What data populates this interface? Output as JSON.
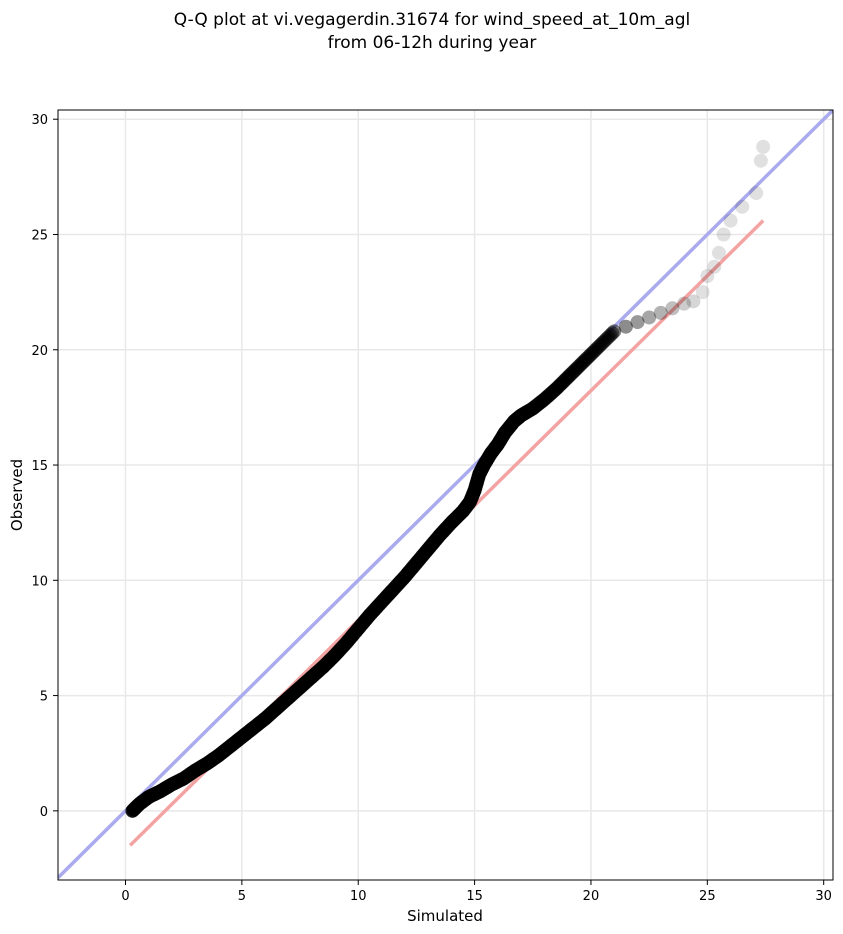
{
  "chart_data": {
    "type": "scatter",
    "title": "Q-Q plot at vi.vegagerdin.31674 for wind_speed_at_10m_agl",
    "subtitle": "from 06-12h during year",
    "xlabel": "Simulated",
    "ylabel": "Observed",
    "xlim": [
      -2.9,
      30.4
    ],
    "ylim": [
      -3.0,
      30.4
    ],
    "xticks": [
      0,
      5,
      10,
      15,
      20,
      25,
      30
    ],
    "yticks": [
      0,
      5,
      10,
      15,
      20,
      25,
      30
    ],
    "grid": true,
    "colors": {
      "points": "#000000",
      "identity_line": "#aaaaee",
      "fit_line": "#f4a3a3",
      "grid": "#e8e8e8"
    },
    "identity_line": {
      "x": [
        -2.9,
        30.4
      ],
      "y": [
        -2.9,
        30.4
      ]
    },
    "fit_line": {
      "x": [
        0.2,
        27.4
      ],
      "y": [
        -1.5,
        25.6
      ]
    },
    "points": [
      [
        0.3,
        0.0
      ],
      [
        0.6,
        0.3
      ],
      [
        1.0,
        0.6
      ],
      [
        1.5,
        0.85
      ],
      [
        2.0,
        1.15
      ],
      [
        2.5,
        1.4
      ],
      [
        3.0,
        1.75
      ],
      [
        3.5,
        2.05
      ],
      [
        4.0,
        2.4
      ],
      [
        4.5,
        2.8
      ],
      [
        5.0,
        3.2
      ],
      [
        5.5,
        3.6
      ],
      [
        6.0,
        4.0
      ],
      [
        6.5,
        4.45
      ],
      [
        7.0,
        4.9
      ],
      [
        7.5,
        5.35
      ],
      [
        8.0,
        5.8
      ],
      [
        8.5,
        6.25
      ],
      [
        9.0,
        6.75
      ],
      [
        9.5,
        7.3
      ],
      [
        10.0,
        7.9
      ],
      [
        10.5,
        8.5
      ],
      [
        11.0,
        9.05
      ],
      [
        11.5,
        9.6
      ],
      [
        12.0,
        10.15
      ],
      [
        12.5,
        10.75
      ],
      [
        13.0,
        11.35
      ],
      [
        13.5,
        11.95
      ],
      [
        14.0,
        12.5
      ],
      [
        14.5,
        13.0
      ],
      [
        14.8,
        13.4
      ],
      [
        15.0,
        13.9
      ],
      [
        15.2,
        14.6
      ],
      [
        15.4,
        15.0
      ],
      [
        15.7,
        15.5
      ],
      [
        16.0,
        15.9
      ],
      [
        16.3,
        16.4
      ],
      [
        16.7,
        16.9
      ],
      [
        17.0,
        17.15
      ],
      [
        17.5,
        17.45
      ],
      [
        18.0,
        17.85
      ],
      [
        18.5,
        18.3
      ],
      [
        19.0,
        18.8
      ],
      [
        19.5,
        19.3
      ],
      [
        20.0,
        19.8
      ],
      [
        20.5,
        20.3
      ],
      [
        21.0,
        20.8
      ],
      [
        21.5,
        21.0
      ],
      [
        22.0,
        21.2
      ],
      [
        22.5,
        21.4
      ],
      [
        23.0,
        21.6
      ],
      [
        23.5,
        21.8
      ],
      [
        24.0,
        22.0
      ],
      [
        24.4,
        22.1
      ],
      [
        24.8,
        22.5
      ],
      [
        25.0,
        23.2
      ],
      [
        25.3,
        23.6
      ],
      [
        25.5,
        24.2
      ],
      [
        25.7,
        25.0
      ],
      [
        26.0,
        25.6
      ],
      [
        26.5,
        26.2
      ],
      [
        27.1,
        26.8
      ],
      [
        27.3,
        28.2
      ],
      [
        27.4,
        28.8
      ]
    ]
  }
}
